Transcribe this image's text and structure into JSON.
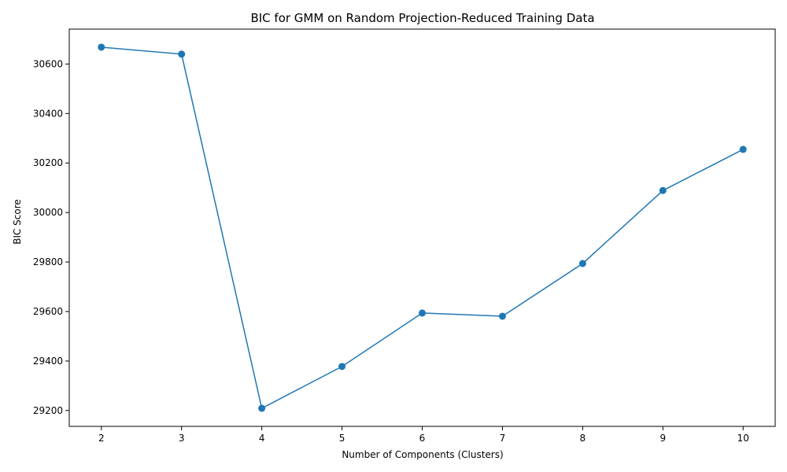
{
  "chart_data": {
    "type": "line",
    "title": "BIC for GMM on Random Projection-Reduced Training Data",
    "xlabel": "Number of Components (Clusters)",
    "ylabel": "BIC Score",
    "x": [
      2,
      3,
      4,
      5,
      6,
      7,
      8,
      9,
      10
    ],
    "series": [
      {
        "values": [
          30668,
          30640,
          29209,
          29378,
          29594,
          29581,
          29794,
          30089,
          30255
        ],
        "color": "#1f77b4",
        "marker": "circle"
      }
    ],
    "xlim": [
      1.6,
      10.4
    ],
    "ylim": [
      29136,
      30741
    ],
    "xticks": [
      2,
      3,
      4,
      5,
      6,
      7,
      8,
      9,
      10
    ],
    "yticks": [
      29200,
      29400,
      29600,
      29800,
      30000,
      30200,
      30400,
      30600
    ],
    "grid": false,
    "legend": "none"
  }
}
